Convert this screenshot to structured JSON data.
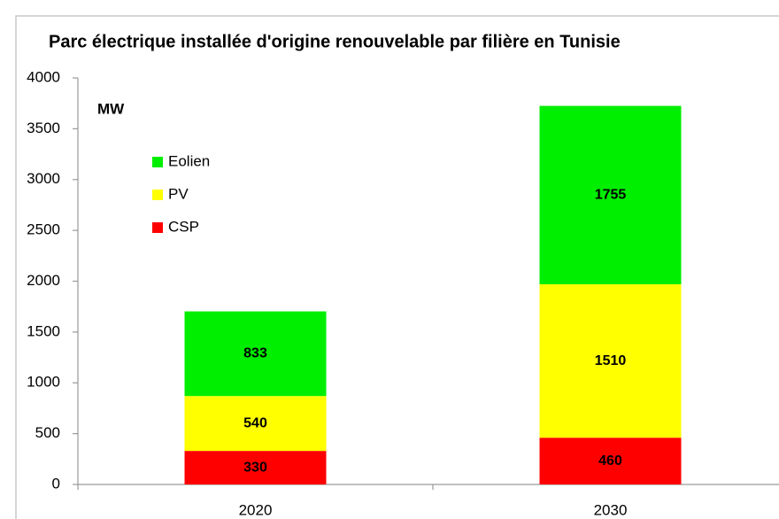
{
  "chart_data": {
    "type": "stacked_bar",
    "title": "Parc électrique installée d'origine renouvelable par filière  en Tunisie",
    "unit_label": "MW",
    "categories": [
      "2020",
      "2030"
    ],
    "series": [
      {
        "name": "CSP",
        "color": "#ff0000",
        "values": [
          330,
          460
        ]
      },
      {
        "name": "PV",
        "color": "#ffff00",
        "values": [
          540,
          1510
        ]
      },
      {
        "name": "Eolien",
        "color": "#00ee00",
        "values": [
          833,
          1755
        ]
      }
    ],
    "ylim": [
      0,
      4000
    ],
    "yticks": [
      0,
      500,
      1000,
      1500,
      2000,
      2500,
      3000,
      3500,
      4000
    ],
    "grid": false,
    "legend": "upper-left"
  }
}
